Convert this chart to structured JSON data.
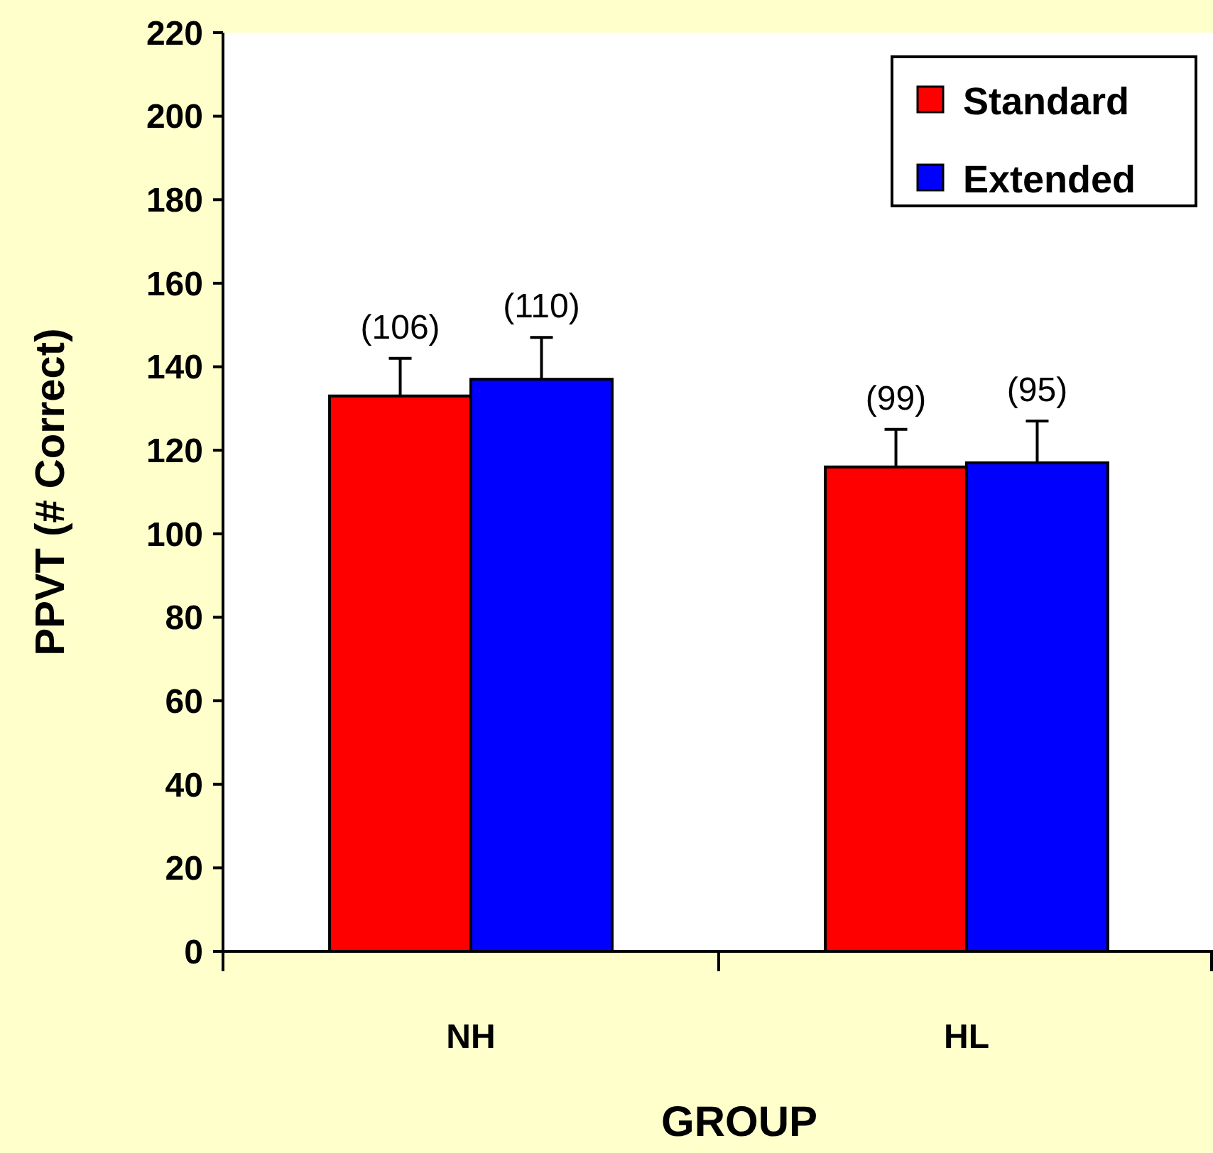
{
  "chart_data": {
    "type": "bar",
    "xlabel": "GROUP",
    "ylabel": "PPVT (# Correct)",
    "categories": [
      "NH",
      "HL"
    ],
    "series": [
      {
        "name": "Standard",
        "color": "#ff0000",
        "values": [
          133,
          116
        ],
        "errors": [
          [
            133,
            142
          ],
          [
            116,
            125
          ]
        ]
      },
      {
        "name": "Extended",
        "color": "#0000ff",
        "values": [
          137,
          117
        ],
        "errors": [
          [
            137,
            147
          ],
          [
            117,
            127
          ]
        ]
      }
    ],
    "annotations": [
      {
        "text": "(106)",
        "x": "NH",
        "y": 133
      },
      {
        "text": "(110)",
        "x": "NH",
        "y": 137
      },
      {
        "text": "(99)",
        "x": "HL",
        "y": 116
      },
      {
        "text": "(95)",
        "x": "HL",
        "y": 117
      }
    ],
    "ylim": [
      0,
      220
    ],
    "yticks": [
      0,
      20,
      40,
      60,
      80,
      100,
      120,
      140,
      160,
      180,
      200,
      220
    ],
    "legend": "top right",
    "grid": false
  }
}
